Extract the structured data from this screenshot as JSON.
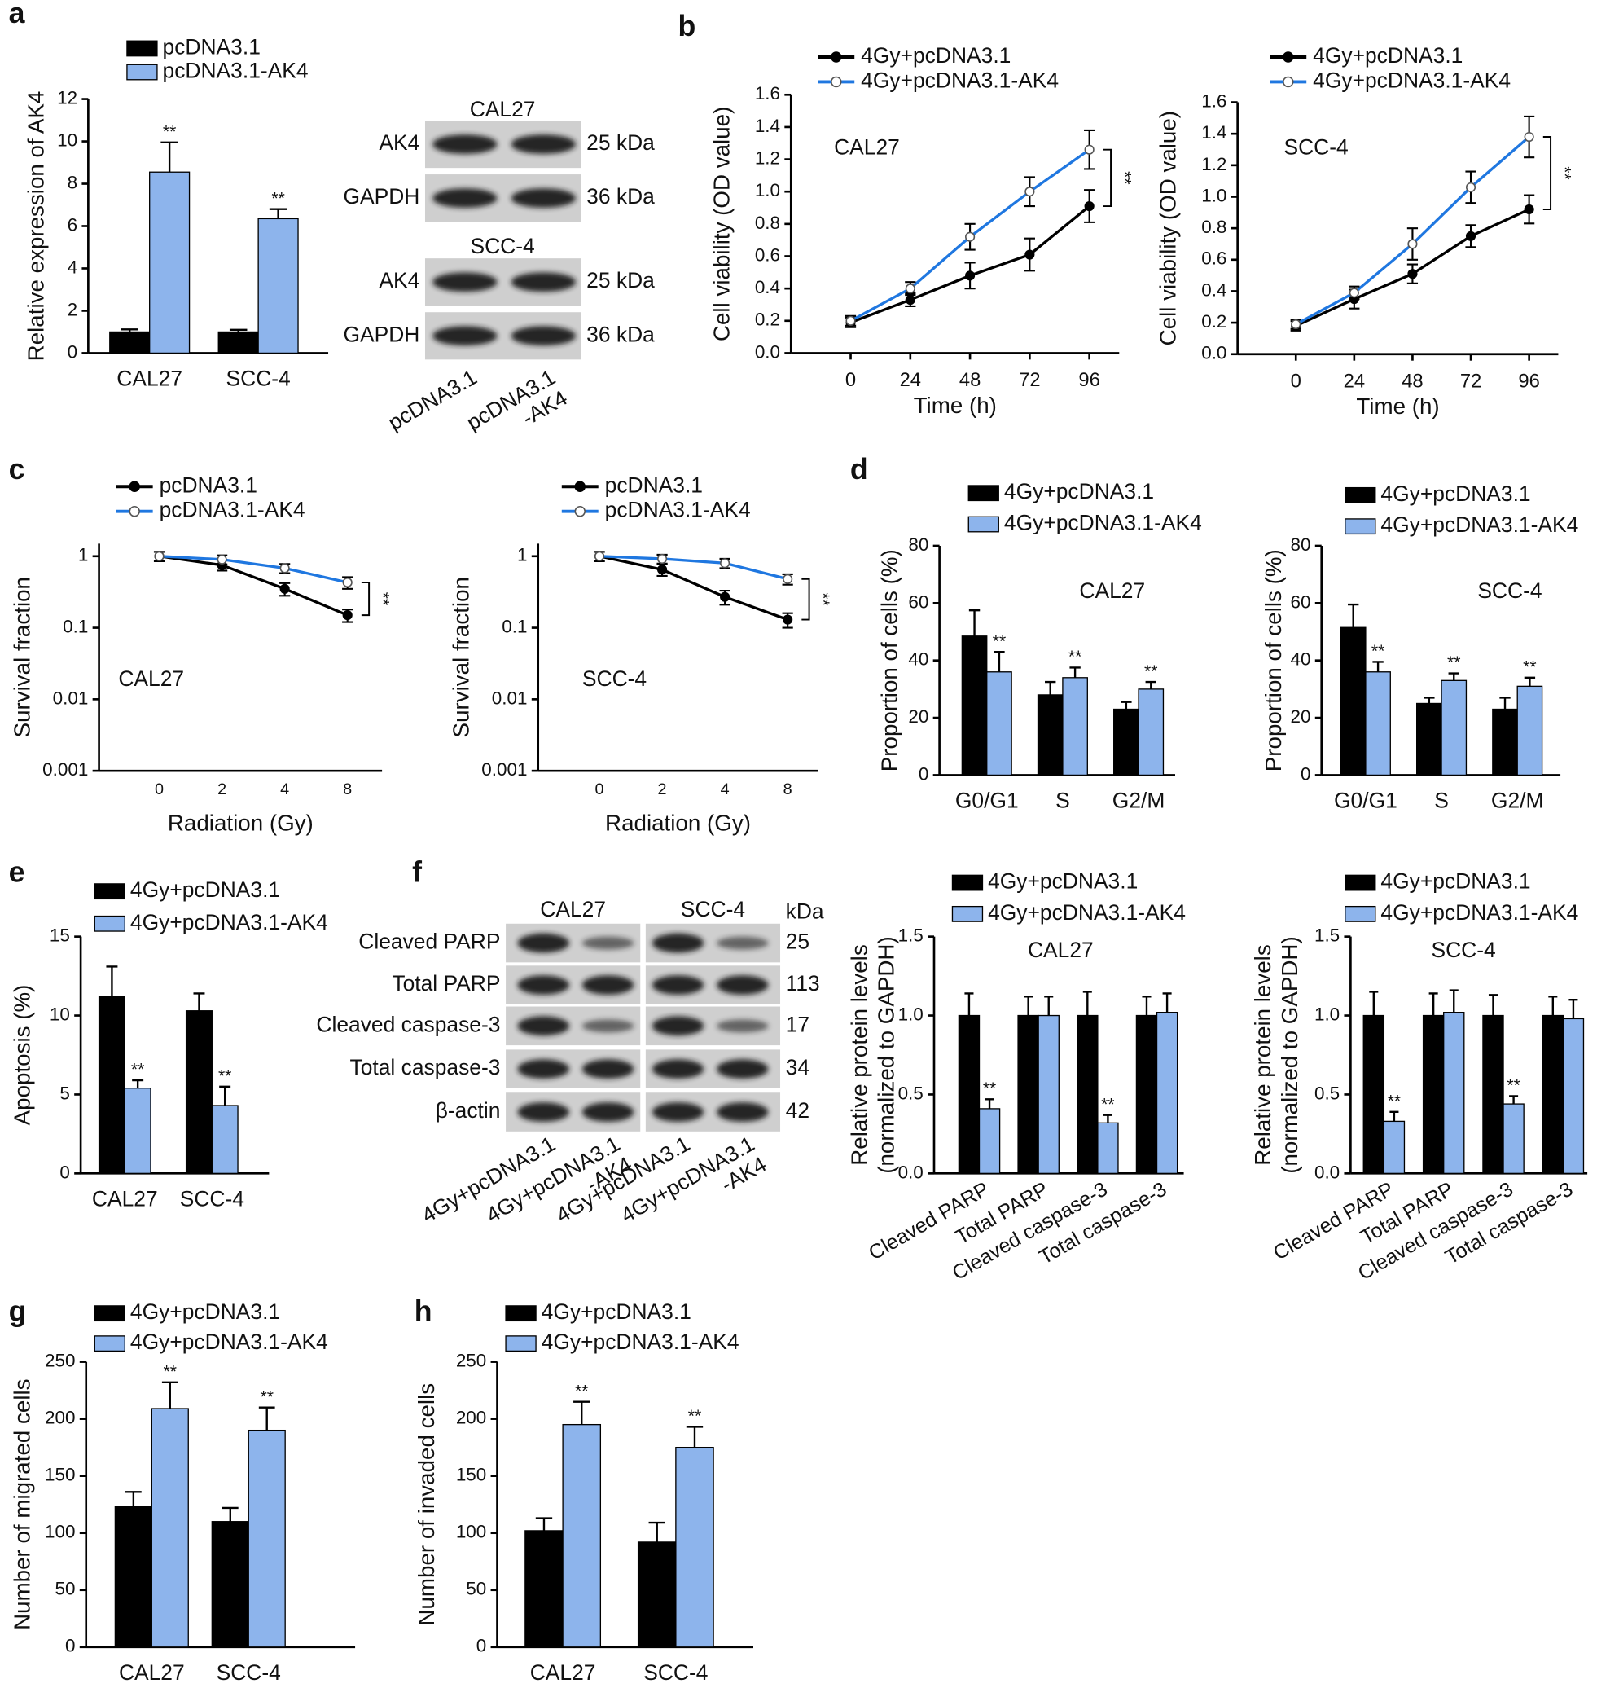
{
  "chart_data": [
    {
      "type": "bar",
      "panel": "a",
      "ylabel": "Relative expression of AK4",
      "categories": [
        "CAL27",
        "SCC-4"
      ],
      "ylim": [
        0,
        12
      ],
      "yticks": [
        0,
        2,
        4,
        6,
        8,
        10,
        12
      ],
      "series": [
        {
          "name": "pcDNA3.1",
          "color": "#000000",
          "values": [
            1,
            1
          ],
          "errors": [
            0.12,
            0.1
          ]
        },
        {
          "name": "pcDNA3.1-AK4",
          "color": "#8db4ec",
          "values": [
            8.55,
            6.35
          ],
          "errors": [
            1.4,
            0.45
          ],
          "significance": [
            "**",
            "**"
          ]
        }
      ]
    },
    {
      "type": "line",
      "panel": "b",
      "xlabel": "Time (h)",
      "ylabel": "Cell viability (OD value)",
      "inset_label": "CAL27",
      "bracket_label": "**",
      "x": [
        0,
        24,
        48,
        72,
        96
      ],
      "xlim": [
        -24,
        108
      ],
      "xticks": [
        0,
        24,
        48,
        72,
        96
      ],
      "ylim": [
        0,
        1.6
      ],
      "yticks": [
        {
          "value": 0,
          "label": "0.0"
        },
        0.2,
        0.4,
        0.6,
        0.8,
        {
          "value": 1,
          "label": "1.0"
        },
        1.2,
        1.4,
        1.6
      ],
      "series": [
        {
          "name": "4Gy+pcDNA3.1",
          "color": "#000000",
          "marker_fill": "#000000",
          "values": [
            0.19,
            0.33,
            0.48,
            0.61,
            0.91
          ],
          "errors": [
            0.03,
            0.04,
            0.08,
            0.1,
            0.1
          ]
        },
        {
          "name": "4Gy+pcDNA3.1-AK4",
          "color": "#1f77e0",
          "marker_fill": "#ffffff",
          "values": [
            0.2,
            0.4,
            0.72,
            1.0,
            1.26
          ],
          "errors": [
            0.03,
            0.04,
            0.08,
            0.09,
            0.12
          ]
        }
      ]
    },
    {
      "type": "line",
      "xlabel": "Time (h)",
      "ylabel": "Cell viability (OD value)",
      "inset_label": "SCC-4",
      "bracket_label": "**",
      "x": [
        0,
        24,
        48,
        72,
        96
      ],
      "xlim": [
        -24,
        108
      ],
      "xticks": [
        0,
        24,
        48,
        72,
        96
      ],
      "ylim": [
        0,
        1.6
      ],
      "yticks": [
        {
          "value": 0,
          "label": "0.0"
        },
        0.2,
        0.4,
        0.6,
        0.8,
        {
          "value": 1,
          "label": "1.0"
        },
        1.2,
        1.4,
        1.6
      ],
      "series": [
        {
          "name": "4Gy+pcDNA3.1",
          "color": "#000000",
          "marker_fill": "#000000",
          "values": [
            0.18,
            0.35,
            0.51,
            0.75,
            0.92
          ],
          "errors": [
            0.03,
            0.06,
            0.06,
            0.07,
            0.09
          ]
        },
        {
          "name": "4Gy+pcDNA3.1-AK4",
          "color": "#1f77e0",
          "marker_fill": "#ffffff",
          "values": [
            0.19,
            0.39,
            0.7,
            1.06,
            1.38
          ],
          "errors": [
            0.03,
            0.04,
            0.1,
            0.1,
            0.13
          ]
        }
      ]
    },
    {
      "type": "line",
      "panel": "c",
      "xlabel": "Radiation (Gy)",
      "ylabel": "Survival fraction",
      "inset_label": "CAL27",
      "bracket_label": "**",
      "categories": [
        "0",
        "2",
        "4",
        "8"
      ],
      "log_y": true,
      "ylim": [
        0.001,
        1.5
      ],
      "yticks": [
        0.001,
        0.01,
        0.1,
        1
      ],
      "series": [
        {
          "name": "pcDNA3.1",
          "color": "#000000",
          "marker_fill": "#000000",
          "values": [
            1,
            0.75,
            0.35,
            0.15
          ],
          "errors": [
            0.15,
            0.12,
            0.07,
            0.03
          ]
        },
        {
          "name": "pcDNA3.1-AK4",
          "color": "#1f77e0",
          "marker_fill": "#ffffff",
          "values": [
            1,
            0.9,
            0.68,
            0.43
          ],
          "errors": [
            0.15,
            0.13,
            0.1,
            0.08
          ]
        }
      ]
    },
    {
      "type": "line",
      "xlabel": "Radiation (Gy)",
      "ylabel": "Survival fraction",
      "inset_label": "SCC-4",
      "bracket_label": "**",
      "categories": [
        "0",
        "2",
        "4",
        "8"
      ],
      "log_y": true,
      "ylim": [
        0.001,
        1.5
      ],
      "yticks": [
        0.001,
        0.01,
        0.1,
        1
      ],
      "series": [
        {
          "name": "pcDNA3.1",
          "color": "#000000",
          "marker_fill": "#000000",
          "values": [
            1,
            0.65,
            0.27,
            0.13
          ],
          "errors": [
            0.15,
            0.12,
            0.06,
            0.03
          ]
        },
        {
          "name": "pcDNA3.1-AK4",
          "color": "#1f77e0",
          "marker_fill": "#ffffff",
          "values": [
            1,
            0.92,
            0.8,
            0.48
          ],
          "errors": [
            0.15,
            0.13,
            0.12,
            0.08
          ]
        }
      ]
    },
    {
      "type": "bar",
      "panel": "d",
      "ylabel": "Proportion of cells (%)",
      "inset_label": "CAL27",
      "categories": [
        "G0/G1",
        "S",
        "G2/M"
      ],
      "ylim": [
        0,
        80
      ],
      "yticks": [
        0,
        20,
        40,
        60,
        80
      ],
      "series": [
        {
          "name": "4Gy+pcDNA3.1",
          "color": "#000000",
          "values": [
            48.5,
            28,
            23
          ],
          "errors": [
            9,
            4.5,
            2.5
          ]
        },
        {
          "name": "4Gy+pcDNA3.1-AK4",
          "color": "#8db4ec",
          "values": [
            36,
            34,
            30
          ],
          "errors": [
            7,
            3.5,
            2.5
          ],
          "significance": [
            "**",
            "**",
            "**"
          ]
        }
      ]
    },
    {
      "type": "bar",
      "ylabel": "Proportion of cells (%)",
      "inset_label": "SCC-4",
      "categories": [
        "G0/G1",
        "S",
        "G2/M"
      ],
      "ylim": [
        0,
        80
      ],
      "yticks": [
        0,
        20,
        40,
        60,
        80
      ],
      "series": [
        {
          "name": "4Gy+pcDNA3.1",
          "color": "#000000",
          "values": [
            51.5,
            25,
            23
          ],
          "errors": [
            8,
            2,
            4
          ]
        },
        {
          "name": "4Gy+pcDNA3.1-AK4",
          "color": "#8db4ec",
          "values": [
            36,
            33,
            31
          ],
          "errors": [
            3.5,
            2.5,
            3
          ],
          "significance": [
            "**",
            "**",
            "**"
          ]
        }
      ]
    },
    {
      "type": "bar",
      "panel": "e",
      "ylabel": "Apoptosis (%)",
      "categories": [
        "CAL27",
        "SCC-4"
      ],
      "ylim": [
        0,
        15
      ],
      "yticks": [
        0,
        5,
        10,
        15
      ],
      "series": [
        {
          "name": "4Gy+pcDNA3.1",
          "color": "#000000",
          "values": [
            11.2,
            10.3
          ],
          "errors": [
            1.9,
            1.1
          ]
        },
        {
          "name": "4Gy+pcDNA3.1-AK4",
          "color": "#8db4ec",
          "values": [
            5.4,
            4.3
          ],
          "errors": [
            0.5,
            1.2
          ],
          "significance": [
            "**",
            "**"
          ]
        }
      ]
    },
    {
      "type": "bar",
      "ylabel": [
        "Relative protein levels",
        "(normalized to GAPDH)"
      ],
      "inset_label": "CAL27",
      "categories": [
        "Cleaved PARP",
        "Total PARP",
        "Cleaved caspase-3",
        "Total caspase-3"
      ],
      "ylim": [
        0,
        1.5
      ],
      "yticks": [
        {
          "value": 0,
          "label": "0.0"
        },
        0.5,
        {
          "value": 1,
          "label": "1.0"
        },
        1.5
      ],
      "series": [
        {
          "name": "4Gy+pcDNA3.1",
          "color": "#000000",
          "values": [
            1,
            1,
            1,
            1
          ],
          "errors": [
            0.14,
            0.12,
            0.15,
            0.12
          ]
        },
        {
          "name": "4Gy+pcDNA3.1-AK4",
          "color": "#8db4ec",
          "values": [
            0.41,
            1,
            0.32,
            1.02
          ],
          "errors": [
            0.06,
            0.12,
            0.05,
            0.12
          ],
          "significance": [
            "**",
            null,
            "**",
            null
          ]
        }
      ]
    },
    {
      "type": "bar",
      "ylabel": [
        "Relative protein levels",
        "(normalized to GAPDH)"
      ],
      "inset_label": "SCC-4",
      "categories": [
        "Cleaved PARP",
        "Total PARP",
        "Cleaved caspase-3",
        "Total caspase-3"
      ],
      "ylim": [
        0,
        1.5
      ],
      "yticks": [
        {
          "value": 0,
          "label": "0.0"
        },
        0.5,
        {
          "value": 1,
          "label": "1.0"
        },
        1.5
      ],
      "series": [
        {
          "name": "4Gy+pcDNA3.1",
          "color": "#000000",
          "values": [
            1,
            1,
            1,
            1
          ],
          "errors": [
            0.15,
            0.14,
            0.13,
            0.12
          ]
        },
        {
          "name": "4Gy+pcDNA3.1-AK4",
          "color": "#8db4ec",
          "values": [
            0.33,
            1.02,
            0.44,
            0.98
          ],
          "errors": [
            0.06,
            0.14,
            0.05,
            0.12
          ],
          "significance": [
            "**",
            null,
            "**",
            null
          ]
        }
      ]
    },
    {
      "type": "bar",
      "panel": "g",
      "ylabel": "Number of migrated cells",
      "categories": [
        "CAL27",
        "SCC-4"
      ],
      "ylim": [
        0,
        250
      ],
      "yticks": [
        0,
        50,
        100,
        150,
        200,
        250
      ],
      "series": [
        {
          "name": "4Gy+pcDNA3.1",
          "color": "#000000",
          "values": [
            123,
            110
          ],
          "errors": [
            13,
            12
          ]
        },
        {
          "name": "4Gy+pcDNA3.1-AK4",
          "color": "#8db4ec",
          "values": [
            209,
            190
          ],
          "errors": [
            23,
            20
          ],
          "significance": [
            "**",
            "**"
          ]
        }
      ]
    },
    {
      "type": "bar",
      "panel": "h",
      "ylabel": "Number of invaded cells",
      "categories": [
        "CAL27",
        "SCC-4"
      ],
      "ylim": [
        0,
        250
      ],
      "yticks": [
        0,
        50,
        100,
        150,
        200,
        250
      ],
      "series": [
        {
          "name": "4Gy+pcDNA3.1",
          "color": "#000000",
          "values": [
            102,
            92
          ],
          "errors": [
            11,
            17
          ]
        },
        {
          "name": "4Gy+pcDNA3.1-AK4",
          "color": "#8db4ec",
          "values": [
            195,
            175
          ],
          "errors": [
            20,
            18
          ],
          "significance": [
            "**",
            "**"
          ]
        }
      ]
    }
  ],
  "blots": [
    {
      "sections": [
        {
          "title": "CAL27",
          "rows": [
            {
              "label": "AK4",
              "kda": "25 kDa"
            },
            {
              "label": "GAPDH",
              "kda": "36 kDa"
            }
          ]
        },
        {
          "title": "SCC-4",
          "rows": [
            {
              "label": "AK4",
              "kda": "25 kDa"
            },
            {
              "label": "GAPDH",
              "kda": "36 kDa"
            }
          ]
        }
      ],
      "lanes": [
        [
          "pcDNA3.1"
        ],
        [
          "pcDNA3.1",
          "-AK4"
        ]
      ]
    },
    {
      "panel": "f",
      "columns": [
        "CAL27",
        "SCC-4"
      ],
      "kda_header": "kDa",
      "rows": [
        {
          "label": "Cleaved PARP",
          "kda": "25"
        },
        {
          "label": "Total PARP",
          "kda": "113"
        },
        {
          "label": "Cleaved caspase-3",
          "kda": "17"
        },
        {
          "label": "Total caspase-3",
          "kda": "34"
        },
        {
          "label": "β-actin",
          "kda": "42"
        }
      ],
      "lanes": [
        [
          "4Gy+pcDNA3.1"
        ],
        [
          "4Gy+pcDNA3.1",
          "-AK4"
        ],
        [
          "4Gy+pcDNA3.1"
        ],
        [
          "4Gy+pcDNA3.1",
          "-AK4"
        ]
      ]
    }
  ]
}
